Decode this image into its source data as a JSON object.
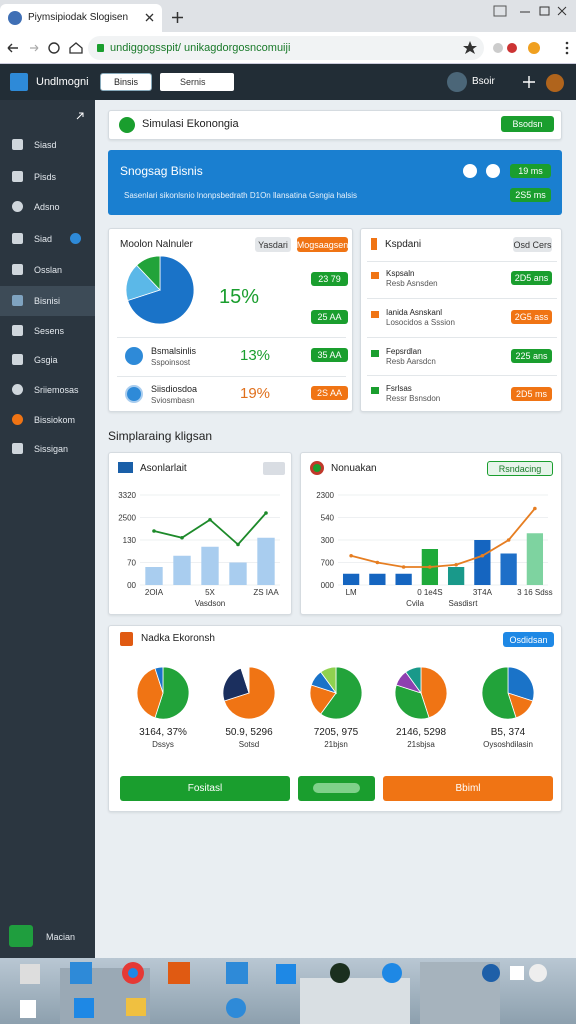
{
  "browser": {
    "tab": "Piymsipiodak Slogisen",
    "url": "undiggogsspit/ unikagdorgosncomuiji"
  },
  "header": {
    "app": "Undlmogni",
    "button": "Binsis",
    "search": "Sernis",
    "user": "Bsoir"
  },
  "sidebar": {
    "items": [
      "Siasd",
      "Pisds",
      "Adsno",
      "Siad",
      "Osslan",
      "Bisnisi",
      "Sesens",
      "Gsgia",
      "Sriiemosas",
      "Bissiokom",
      "Sissigan"
    ],
    "footer": "Macian"
  },
  "top_card": {
    "title": "Simulasi Ekonongia",
    "button": "Bsodsn"
  },
  "banner": {
    "title": "Snogsag Bisnis",
    "text": "Sasenlari sikonlsnio lnonpsbedrath D1On llansatina  Gsngia halsis",
    "buttons": [
      "19 ms",
      "2S5 ms"
    ]
  },
  "summary": {
    "title": "Moolon Nalnuler",
    "tabs": [
      "Yasdari",
      "Mogsaagsen"
    ],
    "percent": "15%",
    "badges": [
      "23 79",
      "25 AA"
    ],
    "rows": [
      {
        "name": "Bsmalsinlis",
        "sub": "Sspoinsost",
        "percent": "13%",
        "badge": "35 AA"
      },
      {
        "name": "Siisdiosdoa",
        "sub": "Sviosmbasn",
        "percent": "19%",
        "badge": "2S AA"
      }
    ]
  },
  "report": {
    "title": "Kspdani",
    "button": "Osd Cers",
    "rows": [
      {
        "name": "Kspsaln",
        "sub": "Resb Asnsden",
        "badge": "2D5 ans"
      },
      {
        "name": "Ianida Asnskanl",
        "sub": "Losocidos a Sssion",
        "badge": "2G5 ass"
      },
      {
        "name": "Fepsrdlan",
        "sub": "Resb Aarsdcn",
        "badge": "225 ans"
      },
      {
        "name": "Fsrlsas",
        "sub": "Ressr Bsnsdon",
        "badge": "2D5 ms"
      }
    ]
  },
  "section_title": "Simplaraing kligsan",
  "media": {
    "title": "Nadka Ekoronsh",
    "button": "Osdidsan",
    "buttons": [
      "Fositasl",
      "Bbiml"
    ]
  },
  "chart_data": [
    {
      "type": "combo",
      "title": "Asonlarlait",
      "categories": [
        "2OIA",
        null,
        "5X",
        null,
        "ZS IAA"
      ],
      "xlabel": "Vasdson",
      "ylim": [
        0,
        4
      ],
      "yticks": [
        {
          "value": 0,
          "label": "00"
        },
        {
          "value": 1,
          "label": "70"
        },
        {
          "value": 2,
          "label": "130"
        },
        {
          "value": 3,
          "label": "2500"
        },
        {
          "value": 4,
          "label": "3320"
        }
      ],
      "grid": true,
      "series": [
        {
          "type": "bar",
          "color": "#a9cdef",
          "values": [
            0.8,
            1.3,
            1.7,
            1.0,
            2.1
          ]
        },
        {
          "type": "line",
          "color": "#1d8a2a",
          "values": [
            2.4,
            2.1,
            2.9,
            1.8,
            3.2
          ]
        }
      ]
    },
    {
      "type": "combo",
      "title": "Nonuakan",
      "button": "Rsndacing",
      "categories": [
        "LM",
        null,
        null,
        "0 1e4S",
        null,
        "3T4A",
        null,
        "3 16 Sdss"
      ],
      "xlabel": [
        "Cvila",
        "Sasdisrt"
      ],
      "ylim": [
        0,
        4
      ],
      "yticks": [
        {
          "value": 0,
          "label": "000"
        },
        {
          "value": 1,
          "label": "700"
        },
        {
          "value": 2,
          "label": "300"
        },
        {
          "value": 3,
          "label": "540"
        },
        {
          "value": 4,
          "label": "2300"
        }
      ],
      "grid": true,
      "series": [
        {
          "type": "bar",
          "colors": [
            "#1565c0",
            "#1565c0",
            "#1565c0",
            "#1faa3a",
            "#19998a",
            "#1565c0",
            "#1e6fc8",
            "#7ed3a0"
          ],
          "values": [
            0.5,
            0.5,
            0.5,
            1.6,
            0.8,
            2.0,
            1.4,
            2.3
          ]
        },
        {
          "type": "line",
          "color": "#e67e22",
          "values": [
            1.3,
            1.0,
            0.8,
            0.8,
            0.9,
            1.3,
            2.0,
            3.4
          ]
        }
      ]
    },
    {
      "type": "pie",
      "values": [
        70,
        18,
        12
      ],
      "colors": [
        "#1a73c8",
        "#5bb8e8",
        "#22a33a"
      ]
    },
    {
      "type": "pie",
      "label": "3164, 37%",
      "caption": "Dssys",
      "values": [
        55,
        40,
        5
      ],
      "colors": [
        "#22a33a",
        "#f07414",
        "#1a73c8"
      ]
    },
    {
      "type": "pie",
      "label": "50.9, 5296",
      "caption": "Sotsd",
      "values": [
        70,
        25,
        5
      ],
      "colors": [
        "#f07414",
        "#1b2f5e",
        "#ffffff"
      ]
    },
    {
      "type": "pie",
      "label": "7205, 975",
      "caption": "21bjsn",
      "values": [
        60,
        20,
        10,
        10
      ],
      "colors": [
        "#22a33a",
        "#f07414",
        "#1a73c8",
        "#8fd14f"
      ]
    },
    {
      "type": "pie",
      "label": "2146, 5298",
      "caption": "21sbjsa",
      "values": [
        45,
        35,
        10,
        10
      ],
      "colors": [
        "#f07414",
        "#22a33a",
        "#8e3fb0",
        "#19998a"
      ]
    },
    {
      "type": "pie",
      "label": "B5, 374",
      "caption": "Oysoshdilasin",
      "values": [
        30,
        15,
        55
      ],
      "colors": [
        "#1a73c8",
        "#f07414",
        "#22a33a"
      ]
    }
  ]
}
